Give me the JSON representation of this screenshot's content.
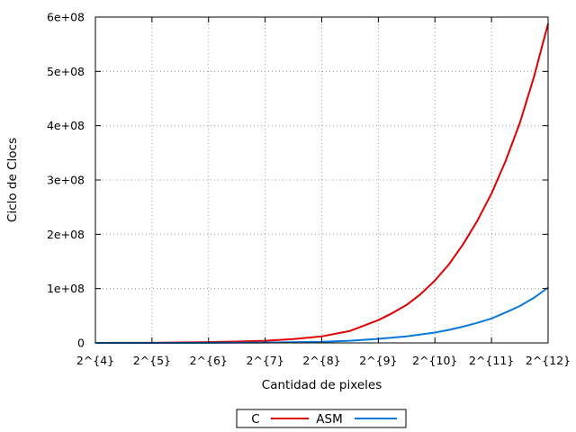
{
  "chart_data": {
    "type": "line",
    "title": "",
    "xlabel": "Cantidad de pixeles",
    "ylabel": "Ciclo de Clocs",
    "x_ticks": [
      "2^{4}",
      "2^{5}",
      "2^{6}",
      "2^{7}",
      "2^{8}",
      "2^{9}",
      "2^{10}",
      "2^{11}",
      "2^{12}"
    ],
    "y_ticks": [
      "0",
      "1e+08",
      "2e+08",
      "3e+08",
      "4e+08",
      "5e+08",
      "6e+08"
    ],
    "x_exponents": [
      4,
      5,
      6,
      7,
      8,
      9,
      10,
      11,
      12
    ],
    "xlim_exponent": [
      4,
      12
    ],
    "ylim": [
      0,
      600000000
    ],
    "grid": true,
    "legend_position": "bottom-center",
    "series": [
      {
        "name": "C",
        "color": "#dd0000",
        "x_exponent": [
          4,
          4.5,
          5,
          5.5,
          6,
          6.5,
          7,
          7.5,
          8,
          8.5,
          9,
          9.25,
          9.5,
          9.75,
          10,
          10.25,
          10.5,
          10.75,
          11,
          11.25,
          11.5,
          11.75,
          12
        ],
        "values": [
          0,
          100000,
          200000,
          800000,
          1500000,
          2500000,
          4000000,
          7000000,
          12000000,
          22000000,
          42000000,
          55000000,
          70000000,
          90000000,
          115000000,
          145000000,
          182000000,
          225000000,
          275000000,
          335000000,
          405000000,
          490000000,
          588000000
        ]
      },
      {
        "name": "ASM",
        "color": "#0a78d8",
        "x_exponent": [
          4,
          5,
          6,
          7,
          8,
          8.5,
          9,
          9.5,
          10,
          10.25,
          10.5,
          10.75,
          11,
          11.25,
          11.5,
          11.75,
          12
        ],
        "values": [
          0,
          0,
          200000,
          700000,
          2000000,
          4000000,
          7500000,
          12000000,
          19000000,
          24000000,
          30000000,
          37000000,
          45000000,
          56000000,
          68000000,
          83000000,
          102000000
        ]
      }
    ]
  }
}
